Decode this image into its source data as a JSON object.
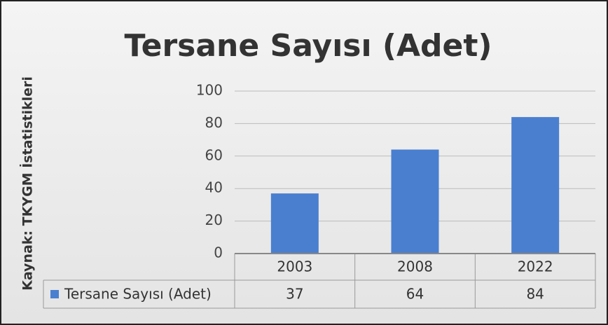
{
  "chart_data": {
    "type": "bar",
    "title": "Tersane Sayısı (Adet)",
    "y_label": "Kaynak: TKYGM İstatistikleri",
    "categories": [
      "2003",
      "2008",
      "2022"
    ],
    "series": [
      {
        "name": "Tersane Sayısı (Adet)",
        "color": "#4a7fd0",
        "values": [
          37,
          64,
          84
        ]
      }
    ],
    "ylim": [
      0,
      100
    ],
    "yticks": [
      0,
      20,
      40,
      60,
      80,
      100
    ],
    "grid": true
  }
}
